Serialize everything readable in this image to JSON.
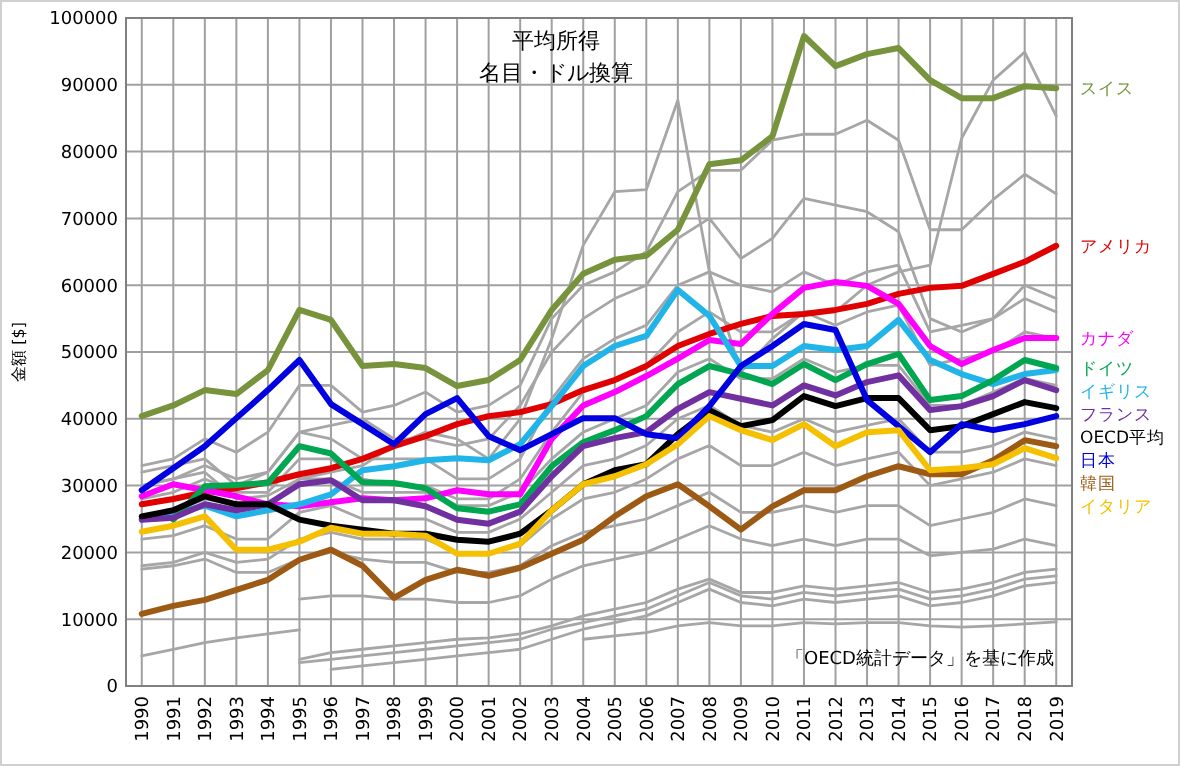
{
  "chart_data": {
    "type": "line",
    "title": "平均所得",
    "subtitle": "名目・ドル換算",
    "ylabel": "金額 [$]",
    "annotations": [
      "「OECD統計データ」を基に作成"
    ],
    "categories": [
      "1990",
      "1991",
      "1992",
      "1993",
      "1994",
      "1995",
      "1996",
      "1997",
      "1998",
      "1999",
      "2000",
      "2001",
      "2002",
      "2003",
      "2004",
      "2005",
      "2006",
      "2007",
      "2008",
      "2009",
      "2010",
      "2011",
      "2012",
      "2013",
      "2014",
      "2015",
      "2016",
      "2017",
      "2018",
      "2019"
    ],
    "ylim": [
      0,
      100000
    ],
    "yticks": [
      0,
      10000,
      20000,
      30000,
      40000,
      50000,
      60000,
      70000,
      80000,
      90000,
      100000
    ],
    "grid": true,
    "legend": false,
    "line_style": "solid",
    "marker": "none",
    "series": [
      {
        "color": "#a6a6a6",
        "values": [
          30000,
          31000,
          32000,
          28000,
          28500,
          31000,
          32000,
          33000,
          36000,
          38000,
          37000,
          34000,
          40000,
          52000,
          66000,
          74000,
          74300,
          87700,
          62000,
          47000,
          52000,
          56000,
          56000,
          60000,
          62000,
          63000,
          82000,
          90700,
          94900,
          85300
        ]
      },
      {
        "color": "#a6a6a6",
        "values": [
          33000,
          34000,
          37000,
          35000,
          38000,
          45000,
          45000,
          41000,
          42000,
          44000,
          41000,
          42000,
          45000,
          55000,
          60000,
          62000,
          65000,
          74000,
          77200,
          77200,
          81700,
          82600,
          82600,
          84700,
          81700,
          68300,
          68300,
          72800,
          76600,
          73700
        ]
      },
      {
        "color": "#a6a6a6",
        "values": [
          32000,
          33000,
          34000,
          30000,
          32000,
          38000,
          39000,
          40000,
          37000,
          37000,
          36000,
          37000,
          42000,
          50000,
          55000,
          58000,
          60000,
          67000,
          70000,
          64000,
          67000,
          73000,
          72000,
          71000,
          68000,
          55000,
          53000,
          55000,
          60000,
          58000
        ]
      },
      {
        "color": "#a6a6a6",
        "values": [
          30000,
          31000,
          33000,
          31000,
          32000,
          38000,
          37000,
          34000,
          34000,
          34000,
          31000,
          31000,
          34000,
          43000,
          49000,
          52000,
          54000,
          60000,
          62000,
          60000,
          59000,
          62000,
          60000,
          62000,
          63000,
          53000,
          54000,
          55000,
          58000,
          56000
        ]
      },
      {
        "color": "#a6a6a6",
        "values": [
          28000,
          29000,
          31000,
          29000,
          29000,
          34000,
          34000,
          31000,
          30000,
          30000,
          28000,
          28000,
          31000,
          38000,
          44000,
          46000,
          48000,
          53000,
          56000,
          53000,
          53000,
          56000,
          54000,
          56000,
          57000,
          48000,
          49000,
          50000,
          53000,
          52000
        ]
      },
      {
        "color": "#a6a6a6",
        "values": [
          25000,
          26000,
          28000,
          27000,
          27000,
          31000,
          31000,
          29000,
          29000,
          29000,
          27000,
          27000,
          29000,
          34000,
          38000,
          40000,
          42000,
          47000,
          49000,
          46000,
          46000,
          49000,
          47000,
          48000,
          48000,
          42000,
          42000,
          44000,
          46000,
          45000
        ]
      },
      {
        "color": "#a6a6a6",
        "values": [
          22000,
          22500,
          24000,
          22000,
          22000,
          26000,
          27000,
          25000,
          25000,
          25000,
          23000,
          23000,
          25000,
          29000,
          33000,
          34000,
          36000,
          40000,
          42000,
          39000,
          38000,
          40000,
          38000,
          39000,
          40000,
          35000,
          35000,
          36000,
          38000,
          37000
        ]
      },
      {
        "color": "#a6a6a6",
        "values": [
          18000,
          18500,
          20000,
          18500,
          19000,
          22000,
          23000,
          22000,
          22000,
          22000,
          20000,
          20000,
          21000,
          25000,
          28000,
          29000,
          31000,
          34000,
          36000,
          33000,
          33000,
          35000,
          33000,
          34000,
          35000,
          30000,
          31000,
          32000,
          34000,
          33000
        ]
      },
      {
        "color": "#a6a6a6",
        "values": [
          17500,
          18000,
          19000,
          17000,
          17000,
          19000,
          20000,
          19000,
          18500,
          18500,
          17000,
          17000,
          18000,
          21000,
          23000,
          24000,
          25000,
          27000,
          29000,
          26000,
          26000,
          27000,
          26000,
          27000,
          27000,
          24000,
          25000,
          26000,
          28000,
          27000
        ]
      },
      {
        "color": "#a6a6a6",
        "values": [
          null,
          null,
          null,
          null,
          null,
          13000,
          13500,
          13500,
          13000,
          13000,
          12500,
          12500,
          13500,
          16000,
          18000,
          19000,
          20000,
          22000,
          24000,
          22000,
          21000,
          22000,
          21000,
          22000,
          22000,
          19500,
          20000,
          20500,
          22000,
          21000
        ]
      },
      {
        "color": "#a6a6a6",
        "values": [
          null,
          null,
          null,
          null,
          null,
          4000,
          5000,
          5500,
          6000,
          6500,
          7000,
          7200,
          7800,
          9000,
          10500,
          11500,
          12500,
          14500,
          16000,
          14000,
          14000,
          15000,
          14500,
          15000,
          15500,
          14000,
          14500,
          15500,
          17000,
          17500
        ]
      },
      {
        "color": "#a6a6a6",
        "values": [
          null,
          null,
          null,
          null,
          null,
          3500,
          4000,
          4500,
          5000,
          5500,
          6000,
          6500,
          7000,
          8500,
          9500,
          10500,
          11500,
          13500,
          15500,
          13500,
          13000,
          14000,
          13500,
          14000,
          14500,
          13000,
          13500,
          14500,
          16000,
          16500
        ]
      },
      {
        "color": "#a6a6a6",
        "values": [
          null,
          null,
          null,
          null,
          null,
          null,
          2500,
          3000,
          3500,
          4000,
          4500,
          5000,
          5500,
          7000,
          8500,
          9500,
          10500,
          12500,
          14500,
          12500,
          12000,
          13000,
          12500,
          13000,
          13500,
          12000,
          12500,
          13500,
          15000,
          15500
        ]
      },
      {
        "color": "#a6a6a6",
        "values": [
          4500,
          5500,
          6500,
          7200,
          7800,
          8400,
          null,
          null,
          null,
          null,
          null,
          null,
          null,
          null,
          null,
          null,
          null,
          null,
          null,
          null,
          null,
          null,
          null,
          null,
          null,
          null,
          null,
          null,
          null,
          null
        ]
      },
      {
        "color": "#a6a6a6",
        "values": [
          null,
          null,
          null,
          null,
          null,
          null,
          null,
          null,
          null,
          null,
          null,
          null,
          null,
          null,
          7000,
          7500,
          8000,
          9000,
          9500,
          9000,
          9000,
          9500,
          9300,
          9500,
          9500,
          9000,
          8800,
          9000,
          9300,
          9600
        ]
      },
      {
        "name": "スイス",
        "color": "#77933c",
        "values": [
          40400,
          42000,
          44300,
          43700,
          47300,
          56300,
          54800,
          47900,
          48200,
          47600,
          44900,
          45800,
          48800,
          56300,
          61700,
          63800,
          64400,
          68300,
          78100,
          78700,
          82300,
          97300,
          92800,
          94600,
          95500,
          90700,
          88000,
          88000,
          89800,
          89500
        ]
      },
      {
        "name": "アメリカ",
        "color": "#e00000",
        "values": [
          27200,
          28000,
          29000,
          29600,
          30500,
          31700,
          32600,
          34000,
          35900,
          37400,
          39200,
          40400,
          41000,
          42200,
          44300,
          45800,
          47900,
          50900,
          52700,
          54200,
          55400,
          55700,
          56300,
          57200,
          58700,
          59600,
          59900,
          61700,
          63500,
          65900
        ]
      },
      {
        "name": "カナダ",
        "color": "#ff00ff",
        "values": [
          28400,
          30200,
          29300,
          28400,
          27200,
          26900,
          27500,
          28100,
          27800,
          28100,
          29300,
          28700,
          28700,
          37000,
          42000,
          44000,
          46400,
          49000,
          51800,
          51200,
          55700,
          59600,
          60500,
          59900,
          57200,
          50900,
          48200,
          50300,
          52100,
          52100
        ]
      },
      {
        "name": "イギリス",
        "color": "#20b4e8",
        "values": [
          24900,
          25800,
          27000,
          25400,
          26300,
          27200,
          28700,
          32300,
          32900,
          33800,
          34100,
          33800,
          36200,
          41900,
          47900,
          50900,
          52400,
          59300,
          55400,
          47900,
          47900,
          50900,
          50300,
          50900,
          54800,
          48800,
          46700,
          45200,
          46700,
          47300
        ]
      },
      {
        "name": "ドイツ",
        "color": "#00a650",
        "values": [
          null,
          24900,
          29900,
          30100,
          30400,
          35900,
          34800,
          30500,
          30400,
          29600,
          26600,
          26100,
          27200,
          32900,
          36500,
          38300,
          40400,
          45200,
          47900,
          46700,
          45200,
          48200,
          45800,
          48200,
          49700,
          42800,
          43400,
          45800,
          48800,
          47600
        ]
      },
      {
        "name": "フランス",
        "color": "#7030a0",
        "values": [
          24900,
          25200,
          27200,
          26300,
          27200,
          30200,
          30800,
          27800,
          27800,
          26900,
          24900,
          24300,
          26100,
          31400,
          35900,
          37100,
          38000,
          41500,
          44000,
          43000,
          42000,
          45000,
          43500,
          45500,
          46500,
          41300,
          41900,
          43400,
          45800,
          44300
        ]
      },
      {
        "name": "OECD平均",
        "color": "#000000",
        "values": [
          25400,
          26300,
          28400,
          27200,
          27200,
          24900,
          24000,
          23400,
          22800,
          22800,
          21900,
          21600,
          22800,
          26300,
          30200,
          32300,
          33200,
          37700,
          41300,
          38900,
          39800,
          43400,
          41900,
          43100,
          43100,
          38300,
          38900,
          40700,
          42500,
          41600
        ]
      },
      {
        "name": "日本",
        "color": "#0000e0",
        "values": [
          29300,
          32600,
          35900,
          40100,
          44300,
          48800,
          42200,
          39200,
          36200,
          40700,
          43100,
          37400,
          35300,
          37700,
          40100,
          40100,
          37700,
          37100,
          41900,
          47900,
          50900,
          54200,
          53300,
          42800,
          38900,
          35000,
          39200,
          38300,
          39200,
          40400
        ]
      },
      {
        "name": "韓国",
        "color": "#9c5a14",
        "values": [
          10800,
          12000,
          12900,
          14400,
          15900,
          18900,
          20400,
          18000,
          13200,
          15900,
          17400,
          16500,
          17700,
          19800,
          21900,
          25400,
          28400,
          30200,
          26900,
          23400,
          26900,
          29300,
          29300,
          31400,
          32900,
          31700,
          31700,
          33800,
          36800,
          35900
        ]
      },
      {
        "name": "イタリア",
        "color": "#f5c000",
        "values": [
          23100,
          24000,
          25400,
          20400,
          20400,
          21600,
          23700,
          22800,
          22800,
          22500,
          19800,
          19800,
          21300,
          26300,
          30200,
          31400,
          33200,
          36200,
          40400,
          38300,
          36800,
          39200,
          35900,
          38000,
          38300,
          32300,
          32600,
          33200,
          35600,
          34100
        ]
      }
    ]
  }
}
